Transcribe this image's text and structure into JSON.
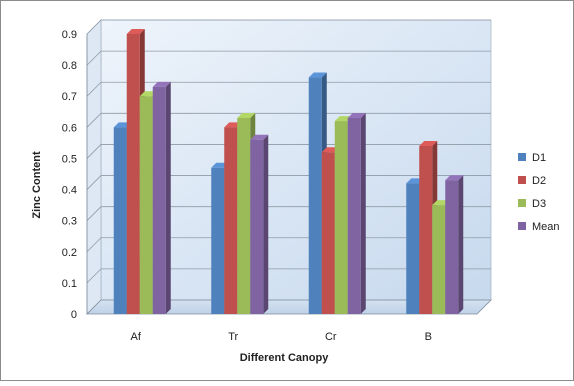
{
  "chart_data": {
    "type": "bar",
    "xlabel": "Different Canopy",
    "ylabel": "Zinc Content",
    "categories": [
      "Af",
      "Tr",
      "Cr",
      "B"
    ],
    "ylim": [
      0,
      0.9
    ],
    "yticks": [
      "0",
      "0.1",
      "0.2",
      "0.3",
      "0.4",
      "0.5",
      "0.6",
      "0.7",
      "0.8",
      "0.9"
    ],
    "grid": true,
    "legend_position": "right",
    "series": [
      {
        "name": "D1",
        "color": "#4f81bd",
        "values": [
          0.6,
          0.47,
          0.76,
          0.42
        ]
      },
      {
        "name": "D2",
        "color": "#c0504d",
        "values": [
          0.9,
          0.6,
          0.52,
          0.54
        ]
      },
      {
        "name": "D3",
        "color": "#9bbb59",
        "values": [
          0.7,
          0.63,
          0.62,
          0.35
        ]
      },
      {
        "name": "Mean",
        "color": "#8064a2",
        "values": [
          0.73,
          0.56,
          0.63,
          0.43
        ]
      }
    ]
  }
}
